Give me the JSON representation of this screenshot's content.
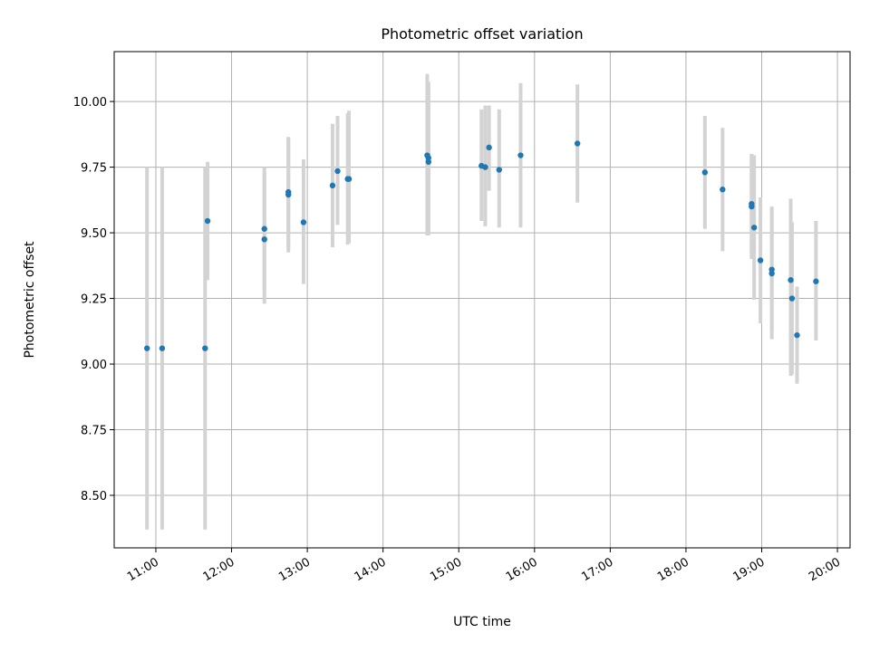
{
  "chart_data": {
    "type": "scatter",
    "title": "Photometric offset variation",
    "xlabel": "UTC time",
    "ylabel": "Photometric offset",
    "xlim": [
      "10:27",
      "20:10"
    ],
    "ylim": [
      8.3,
      10.19
    ],
    "grid": true,
    "x_ticks": [
      "11:00",
      "12:00",
      "13:00",
      "14:00",
      "15:00",
      "16:00",
      "17:00",
      "18:00",
      "19:00",
      "20:00"
    ],
    "y_ticks": [
      8.5,
      8.75,
      9.0,
      9.25,
      9.5,
      9.75,
      10.0
    ],
    "y_tick_labels": [
      "8.50",
      "8.75",
      "9.00",
      "9.25",
      "9.50",
      "9.75",
      "10.00"
    ],
    "colors": {
      "point": "#1f77b4",
      "errorbar": "#d3d3d3",
      "grid": "#b0b0b0"
    },
    "points": [
      {
        "x": "10:53",
        "y": 9.06,
        "ylow": 8.37,
        "yhigh": 9.75
      },
      {
        "x": "11:05",
        "y": 9.06,
        "ylow": 8.37,
        "yhigh": 9.75
      },
      {
        "x": "11:39",
        "y": 9.06,
        "ylow": 8.37,
        "yhigh": 9.75
      },
      {
        "x": "11:41",
        "y": 9.545,
        "ylow": 9.32,
        "yhigh": 9.77
      },
      {
        "x": "12:26",
        "y": 9.515,
        "ylow": 9.28,
        "yhigh": 9.75
      },
      {
        "x": "12:26",
        "y": 9.475,
        "ylow": 9.23,
        "yhigh": 9.73
      },
      {
        "x": "12:45",
        "y": 9.655,
        "ylow": 9.44,
        "yhigh": 9.865
      },
      {
        "x": "12:45",
        "y": 9.645,
        "ylow": 9.425,
        "yhigh": 9.86
      },
      {
        "x": "12:57",
        "y": 9.54,
        "ylow": 9.305,
        "yhigh": 9.78
      },
      {
        "x": "13:20",
        "y": 9.68,
        "ylow": 9.445,
        "yhigh": 9.915
      },
      {
        "x": "13:24",
        "y": 9.735,
        "ylow": 9.53,
        "yhigh": 9.945
      },
      {
        "x": "13:32",
        "y": 9.705,
        "ylow": 9.455,
        "yhigh": 9.955
      },
      {
        "x": "13:33",
        "y": 9.705,
        "ylow": 9.46,
        "yhigh": 9.965
      },
      {
        "x": "14:35",
        "y": 9.795,
        "ylow": 9.49,
        "yhigh": 10.105
      },
      {
        "x": "14:36",
        "y": 9.785,
        "ylow": 9.495,
        "yhigh": 10.075
      },
      {
        "x": "14:36",
        "y": 9.77,
        "ylow": 9.49,
        "yhigh": 10.06
      },
      {
        "x": "15:18",
        "y": 9.755,
        "ylow": 9.545,
        "yhigh": 9.97
      },
      {
        "x": "15:21",
        "y": 9.75,
        "ylow": 9.525,
        "yhigh": 9.985
      },
      {
        "x": "15:24",
        "y": 9.825,
        "ylow": 9.66,
        "yhigh": 9.985
      },
      {
        "x": "15:32",
        "y": 9.74,
        "ylow": 9.52,
        "yhigh": 9.97
      },
      {
        "x": "15:49",
        "y": 9.795,
        "ylow": 9.52,
        "yhigh": 10.07
      },
      {
        "x": "16:34",
        "y": 9.84,
        "ylow": 9.615,
        "yhigh": 10.065
      },
      {
        "x": "18:15",
        "y": 9.73,
        "ylow": 9.515,
        "yhigh": 9.945
      },
      {
        "x": "18:29",
        "y": 9.665,
        "ylow": 9.43,
        "yhigh": 9.9
      },
      {
        "x": "18:52",
        "y": 9.61,
        "ylow": 9.42,
        "yhigh": 9.8
      },
      {
        "x": "18:52",
        "y": 9.6,
        "ylow": 9.4,
        "yhigh": 9.8
      },
      {
        "x": "18:54",
        "y": 9.52,
        "ylow": 9.245,
        "yhigh": 9.795
      },
      {
        "x": "18:59",
        "y": 9.395,
        "ylow": 9.155,
        "yhigh": 9.635
      },
      {
        "x": "19:08",
        "y": 9.36,
        "ylow": 9.125,
        "yhigh": 9.6
      },
      {
        "x": "19:08",
        "y": 9.345,
        "ylow": 9.095,
        "yhigh": 9.595
      },
      {
        "x": "19:23",
        "y": 9.32,
        "ylow": 8.955,
        "yhigh": 9.63
      },
      {
        "x": "19:24",
        "y": 9.25,
        "ylow": 8.96,
        "yhigh": 9.54
      },
      {
        "x": "19:28",
        "y": 9.11,
        "ylow": 8.925,
        "yhigh": 9.295
      },
      {
        "x": "19:43",
        "y": 9.315,
        "ylow": 9.09,
        "yhigh": 9.545
      }
    ]
  }
}
